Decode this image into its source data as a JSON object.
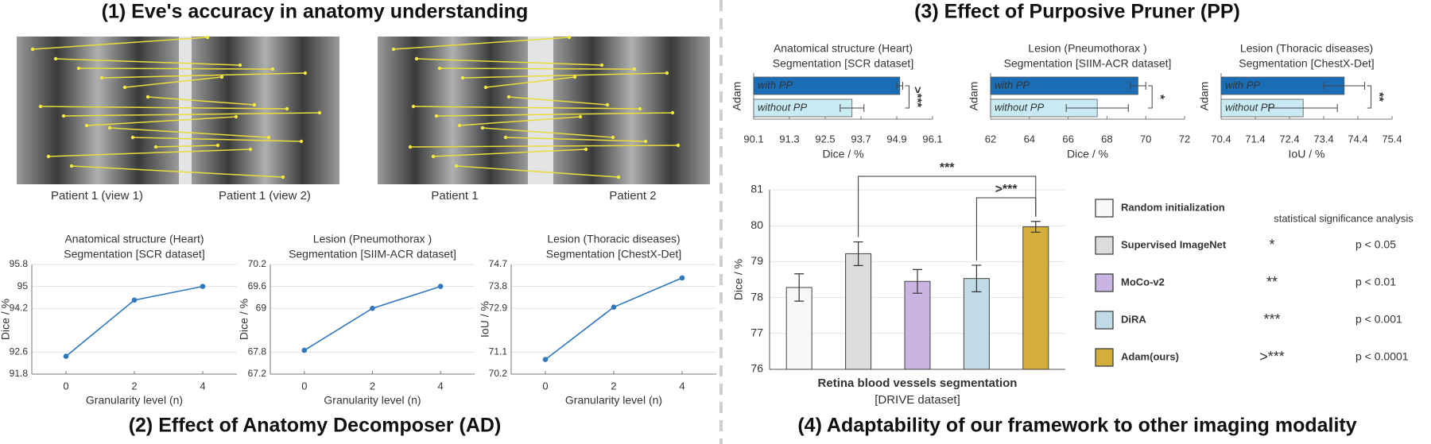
{
  "headings": [
    "(1) Eve's accuracy in anatomy understanding",
    "(2) Effect of Anatomy Decomposer (AD)",
    "(3) Effect of Purposive Pruner (PP)",
    "(4) Adaptability of our framework to other imaging modality"
  ],
  "image_captions": [
    "Patient 1 (view 1)",
    "Patient 1 (view 2)",
    "Patient 1",
    "Patient 2"
  ],
  "chart_data": [
    {
      "type": "line",
      "title": [
        "Anatomical structure (Heart)",
        "Segmentation [SCR dataset]"
      ],
      "x": [
        0,
        2,
        4
      ],
      "values": [
        92.45,
        94.5,
        95.0
      ],
      "color": "#2f78c0",
      "xlim": [
        -1,
        5
      ],
      "xticks": [
        0,
        2,
        4
      ],
      "ylim": [
        91.8,
        95.8
      ],
      "yticks": [
        91.8,
        92.6,
        94.2,
        95,
        95.8
      ],
      "xlabel": "Granularity level (n)",
      "ylabel": "Dice / %",
      "grid": true
    },
    {
      "type": "line",
      "title": [
        "Lesion (Pneumothorax )",
        "Segmentation [SIIM-ACR dataset]"
      ],
      "x": [
        0,
        2,
        4
      ],
      "values": [
        67.85,
        69.0,
        69.6
      ],
      "color": "#2f78c0",
      "xlim": [
        -1,
        5
      ],
      "xticks": [
        0,
        2,
        4
      ],
      "ylim": [
        67.2,
        70.2
      ],
      "yticks": [
        67.2,
        67.8,
        69,
        69.6,
        70.2
      ],
      "xlabel": "Granularity level (n)",
      "ylabel": "Dice / %",
      "grid": true
    },
    {
      "type": "line",
      "title": [
        "Lesion (Thoracic diseases)",
        "Segmentation [ChestX-Det]"
      ],
      "x": [
        0,
        2,
        4
      ],
      "values": [
        70.8,
        72.95,
        74.15
      ],
      "color": "#2f78c0",
      "xlim": [
        -1,
        5
      ],
      "xticks": [
        0,
        2,
        4
      ],
      "ylim": [
        70.2,
        74.7
      ],
      "yticks": [
        70.2,
        71.1,
        72.9,
        73.8,
        74.7
      ],
      "xlabel": "Granularity level (n)",
      "ylabel": "IoU / %",
      "grid": true
    },
    {
      "type": "hbar",
      "title": [
        "Anatomical structure (Heart)",
        "Segmentation [SCR dataset]"
      ],
      "categories": [
        "with PP",
        "without PP"
      ],
      "values": [
        95.0,
        93.4
      ],
      "errors": [
        0.1,
        0.4
      ],
      "colors": [
        "#1b6db5",
        "#c8eaf2"
      ],
      "xlim": [
        90.1,
        96.1
      ],
      "xticks": [
        90.1,
        91.3,
        92.5,
        93.7,
        94.9,
        96.1
      ],
      "xlabel": "Dice / %",
      "ylabel": "Adam",
      "significance": ">***"
    },
    {
      "type": "hbar",
      "title": [
        "Lesion (Pneumothorax )",
        "Segmentation [SIIM-ACR dataset]"
      ],
      "categories": [
        "with PP",
        "without PP"
      ],
      "values": [
        69.6,
        67.5
      ],
      "errors": [
        0.4,
        1.6
      ],
      "colors": [
        "#1b6db5",
        "#c8eaf2"
      ],
      "xlim": [
        62,
        72
      ],
      "xticks": [
        62,
        64,
        66,
        68,
        70,
        72
      ],
      "xlabel": "Dice / %",
      "ylabel": "Adam",
      "significance": "*"
    },
    {
      "type": "hbar",
      "title": [
        "Lesion (Thoracic diseases)",
        "Segmentation [ChestX-Det]"
      ],
      "categories": [
        "with PP",
        "without PP"
      ],
      "values": [
        74.0,
        72.8
      ],
      "errors": [
        0.6,
        1.0
      ],
      "colors": [
        "#1b6db5",
        "#c8eaf2"
      ],
      "xlim": [
        70.4,
        75.4
      ],
      "xticks": [
        70.4,
        71.4,
        72.4,
        73.4,
        74.4,
        75.4
      ],
      "xlabel": "IoU / %",
      "ylabel": "Adam",
      "significance": "**"
    },
    {
      "type": "bar",
      "categories": [
        "Random initialization",
        "Supervised ImageNet",
        "MoCo-v2",
        "DiRA",
        "Adam(ours)"
      ],
      "values": [
        78.28,
        79.22,
        78.45,
        78.53,
        79.97
      ],
      "errors": [
        0.38,
        0.33,
        0.33,
        0.37,
        0.15
      ],
      "colors": [
        "#f8f8f8",
        "#dcdcdc",
        "#c9b3e0",
        "#c0dbe6",
        "#d4ae3a"
      ],
      "ylim": [
        76,
        81
      ],
      "yticks": [
        76,
        77,
        78,
        79,
        80,
        81
      ],
      "ylabel": "Dice / %",
      "xlabel": [
        "Retina blood vessels segmentation",
        "[DRIVE dataset]"
      ],
      "grid": true,
      "annotations": [
        {
          "between": [
            "Supervised ImageNet",
            "Adam(ours)"
          ],
          "label": "***"
        },
        {
          "between": [
            "DiRA",
            "Adam(ours)"
          ],
          "label": ">***"
        }
      ],
      "significance_legend": {
        "title": "statistical significance analysis",
        "rows": [
          {
            "symbol": "*",
            "label": "p < 0.05"
          },
          {
            "symbol": "**",
            "label": "p < 0.01"
          },
          {
            "symbol": "***",
            "label": "p < 0.001"
          },
          {
            "symbol": ">***",
            "label": "p < 0.0001"
          }
        ]
      }
    }
  ]
}
